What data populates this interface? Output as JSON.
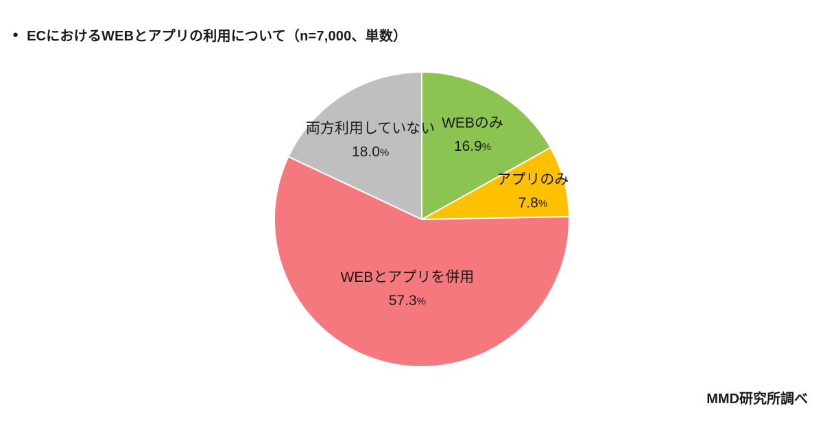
{
  "header": {
    "bullet": "●",
    "title": "ECにおけるWEBとアプリの利用について（n=7,000、単数）"
  },
  "footer": {
    "source": "MMD研究所調べ"
  },
  "colors": {
    "text": "#1a1a1a",
    "slice_border": "#ffffff"
  },
  "chart_data": {
    "type": "pie",
    "title": "ECにおけるWEBとアプリの利用について",
    "sample_note": "n=7,000、単数",
    "unit": "%",
    "start_angle_deg": 0,
    "direction": "clockwise",
    "slices": [
      {
        "label": "WEBのみ",
        "value": 16.9,
        "display": "16.9",
        "color": "#8CC451"
      },
      {
        "label": "アプリのみ",
        "value": 7.8,
        "display": "7.8",
        "color": "#FFC000"
      },
      {
        "label": "WEBとアプリを併用",
        "value": 57.3,
        "display": "57.3",
        "color": "#F6787F"
      },
      {
        "label": "両方利用していない",
        "value": 18.0,
        "display": "18.0",
        "color": "#BFBFBF"
      }
    ]
  }
}
